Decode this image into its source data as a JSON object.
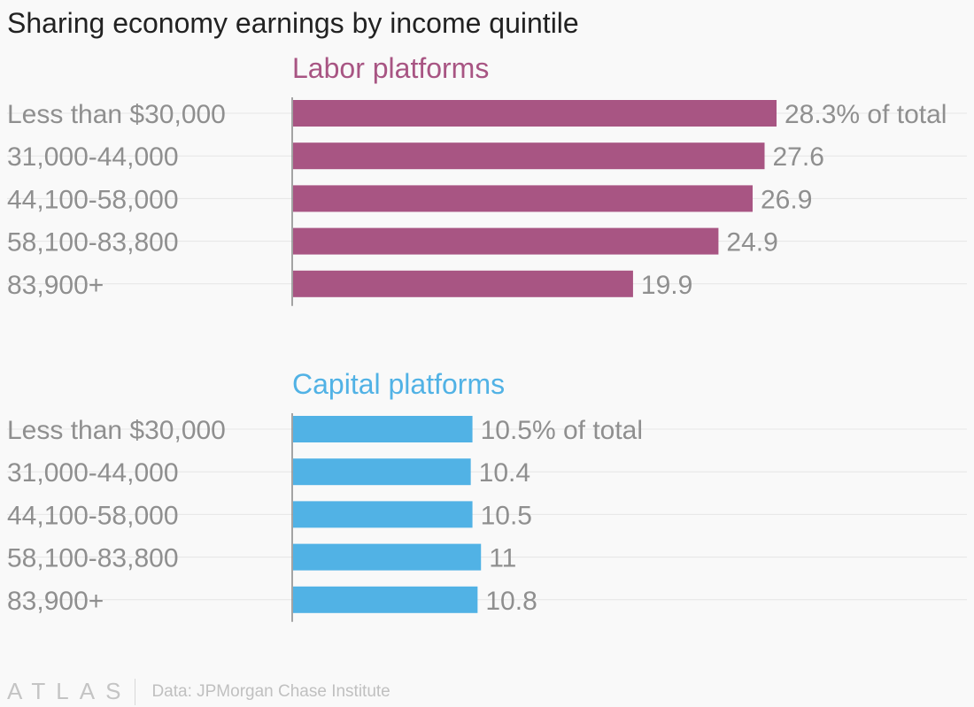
{
  "title": "Sharing economy earnings by income quintile",
  "footer": {
    "logo": "ATLAS",
    "source": "Data: JPMorgan Chase Institute"
  },
  "colors": {
    "labor": "#a85583",
    "capital": "#51b2e5",
    "label": "#8f8f8f",
    "grid": "#e6e6e6",
    "axis": "#888888"
  },
  "chart_data": [
    {
      "type": "bar",
      "orientation": "horizontal",
      "title": "Labor platforms",
      "color": "#a85583",
      "categories": [
        "Less than $30,000",
        "31,000-44,000",
        "44,100-58,000",
        "58,100-83,800",
        "83,900+"
      ],
      "values": [
        28.3,
        27.6,
        26.9,
        24.9,
        19.9
      ],
      "value_labels": [
        "28.3% of total",
        "27.6",
        "26.9",
        "24.9",
        "19.9"
      ],
      "xlim": [
        0,
        28.3
      ],
      "grid": true
    },
    {
      "type": "bar",
      "orientation": "horizontal",
      "title": "Capital platforms",
      "color": "#51b2e5",
      "categories": [
        "Less than $30,000",
        "31,000-44,000",
        "44,100-58,000",
        "58,100-83,800",
        "83,900+"
      ],
      "values": [
        10.5,
        10.4,
        10.5,
        11,
        10.8
      ],
      "value_labels": [
        "10.5% of total",
        "10.4",
        "10.5",
        "11",
        "10.8"
      ],
      "xlim": [
        0,
        28.3
      ],
      "grid": true
    }
  ]
}
